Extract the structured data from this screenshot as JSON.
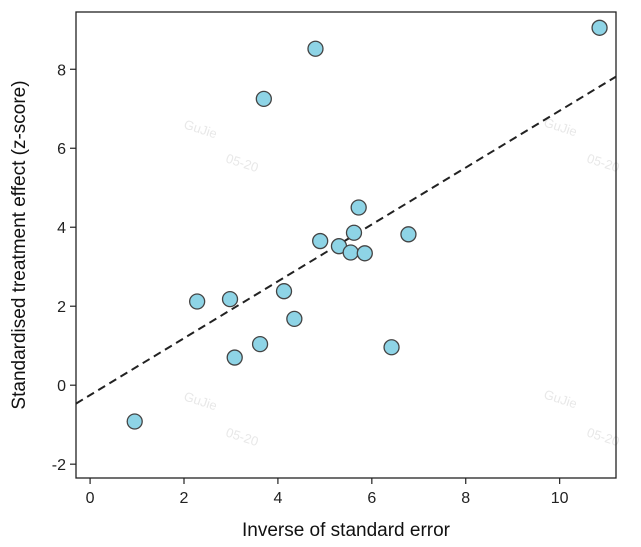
{
  "chart_data": {
    "type": "scatter",
    "xlabel": "Inverse of standard error",
    "ylabel": "Standardised treatment effect (z-score)",
    "xlim": [
      -0.3,
      11.2
    ],
    "ylim": [
      -2.35,
      9.45
    ],
    "x_ticks": [
      0,
      2,
      4,
      6,
      8,
      10
    ],
    "y_ticks": [
      -2,
      0,
      2,
      4,
      6,
      8
    ],
    "grid": false,
    "point_color": "#8ed4e6",
    "point_edge_color": "#444444",
    "line_color": "#222222",
    "points": [
      {
        "x": 0.95,
        "y": -0.92
      },
      {
        "x": 2.28,
        "y": 2.12
      },
      {
        "x": 2.98,
        "y": 2.18
      },
      {
        "x": 3.08,
        "y": 0.7
      },
      {
        "x": 3.62,
        "y": 1.04
      },
      {
        "x": 3.7,
        "y": 7.25
      },
      {
        "x": 4.13,
        "y": 2.38
      },
      {
        "x": 4.35,
        "y": 1.68
      },
      {
        "x": 4.8,
        "y": 8.52
      },
      {
        "x": 4.9,
        "y": 3.65
      },
      {
        "x": 5.3,
        "y": 3.52
      },
      {
        "x": 5.55,
        "y": 3.36
      },
      {
        "x": 5.62,
        "y": 3.86
      },
      {
        "x": 5.72,
        "y": 4.5
      },
      {
        "x": 5.85,
        "y": 3.34
      },
      {
        "x": 6.42,
        "y": 0.96
      },
      {
        "x": 6.78,
        "y": 3.82
      },
      {
        "x": 10.85,
        "y": 9.05
      }
    ],
    "regression_line": {
      "style": "dashed",
      "intercept": -0.25,
      "slope": 0.72
    }
  },
  "watermarks": [
    "GuJie",
    "05-20",
    "GuJie",
    "05-20",
    "GuJie",
    "05-20",
    "GuJie",
    "05-20"
  ]
}
